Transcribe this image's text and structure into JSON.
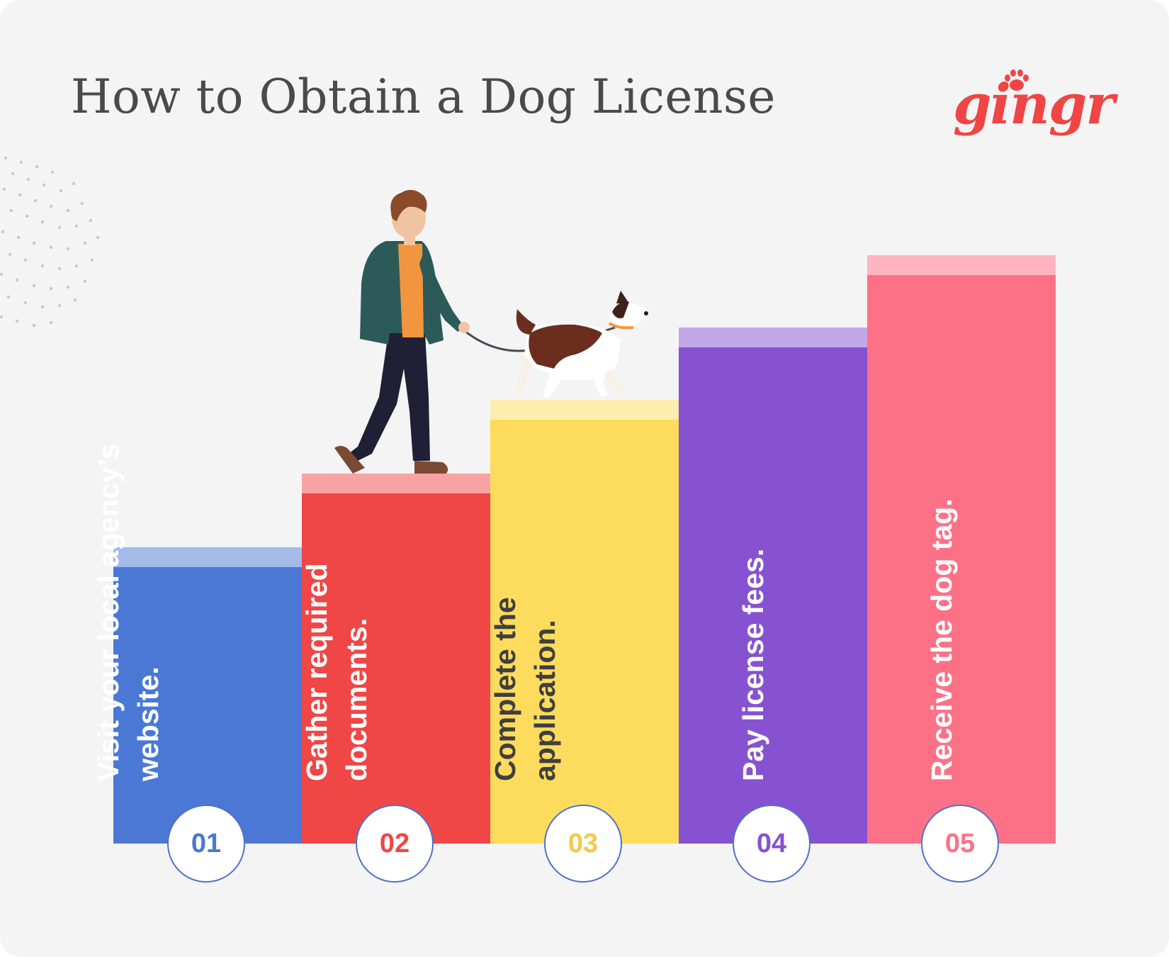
{
  "title": "How to Obtain a Dog License",
  "brand": {
    "logo_text": "gingr",
    "color": "#ef4545"
  },
  "steps": [
    {
      "number": "01",
      "text": "Visit your local agency’s website.",
      "body_color": "#4a78d4",
      "cap_color": "#a4bae8",
      "text_color": "#ffffff",
      "number_color": "#4a78d4"
    },
    {
      "number": "02",
      "text": "Gather required documents.",
      "body_color": "#f04646",
      "cap_color": "#f8a3a3",
      "text_color": "#ffffff",
      "number_color": "#f04646"
    },
    {
      "number": "03",
      "text": "Complete the application.",
      "body_color": "#fddb5d",
      "cap_color": "#feeeae",
      "text_color": "#3f3f3f",
      "number_color": "#f6c84a"
    },
    {
      "number": "04",
      "text": "Pay license fees.",
      "body_color": "#8652d1",
      "cap_color": "#c2a8e6",
      "text_color": "#ffffff",
      "number_color": "#8652d1"
    },
    {
      "number": "05",
      "text": "Receive the dog tag.",
      "body_color": "#fd7187",
      "cap_color": "#feb5c1",
      "text_color": "#ffffff",
      "number_color": "#fd7187"
    }
  ],
  "illustration": {
    "icon": "person-walking-dog-icon"
  }
}
